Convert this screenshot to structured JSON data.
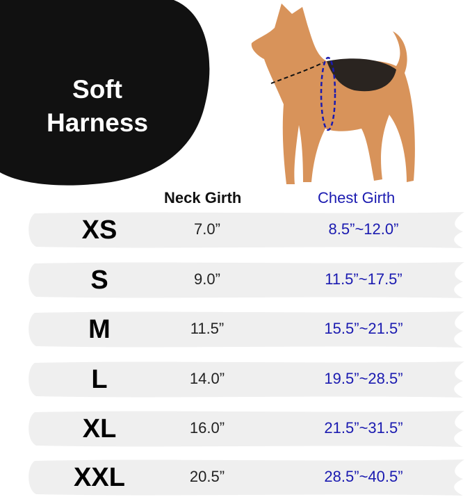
{
  "title": {
    "line1": "Soft",
    "line2": "Harness"
  },
  "colors": {
    "chest": "#1a1ab0",
    "row_bg": "#efefef",
    "blob": "#111111"
  },
  "headers": {
    "neck": "Neck Girth",
    "chest": "Chest Girth"
  },
  "rows": [
    {
      "size": "XS",
      "neck": "7.0”",
      "chest": "8.5”~12.0”"
    },
    {
      "size": "S",
      "neck": "9.0”",
      "chest": "11.5”~17.5”"
    },
    {
      "size": "M",
      "neck": "11.5”",
      "chest": "15.5”~21.5”"
    },
    {
      "size": "L",
      "neck": "14.0”",
      "chest": "19.5”~28.5”"
    },
    {
      "size": "XL",
      "neck": "16.0”",
      "chest": "21.5”~31.5”"
    },
    {
      "size": "XXL",
      "neck": "20.5”",
      "chest": "28.5”~40.5”"
    }
  ]
}
